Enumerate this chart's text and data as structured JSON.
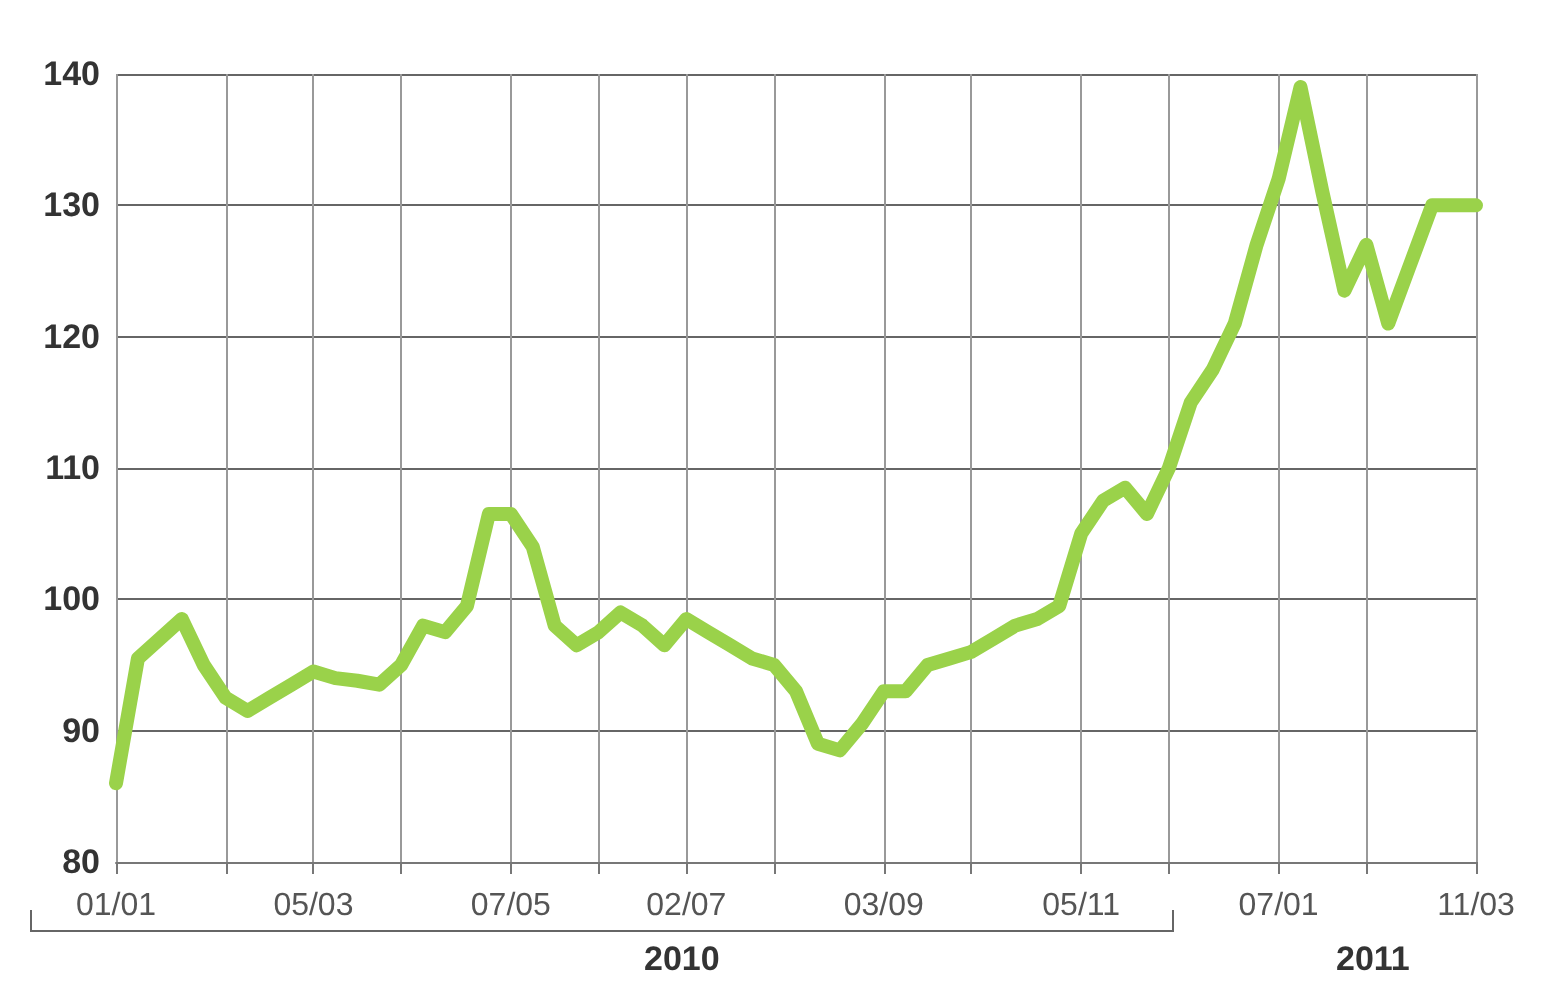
{
  "chart_data": {
    "type": "line",
    "x": [
      "2010-01-01",
      "2010-01-08",
      "2010-01-15",
      "2010-01-22",
      "2010-01-29",
      "2010-02-05",
      "2010-02-12",
      "2010-02-19",
      "2010-02-26",
      "2010-03-05",
      "2010-03-12",
      "2010-03-19",
      "2010-03-26",
      "2010-04-02",
      "2010-04-09",
      "2010-04-16",
      "2010-04-23",
      "2010-04-30",
      "2010-05-07",
      "2010-05-14",
      "2010-05-21",
      "2010-05-28",
      "2010-06-04",
      "2010-06-11",
      "2010-06-18",
      "2010-06-25",
      "2010-07-02",
      "2010-07-09",
      "2010-07-16",
      "2010-07-23",
      "2010-07-30",
      "2010-08-06",
      "2010-08-13",
      "2010-08-20",
      "2010-08-27",
      "2010-09-03",
      "2010-09-10",
      "2010-09-17",
      "2010-09-24",
      "2010-10-01",
      "2010-10-08",
      "2010-10-15",
      "2010-10-22",
      "2010-10-29",
      "2010-11-05",
      "2010-11-12",
      "2010-11-19",
      "2010-11-26",
      "2010-12-03",
      "2010-12-10",
      "2010-12-17",
      "2010-12-24",
      "2010-12-31",
      "2011-01-07",
      "2011-01-14",
      "2011-01-21",
      "2011-01-28",
      "2011-02-04",
      "2011-02-11",
      "2011-02-18",
      "2011-02-25",
      "2011-03-04",
      "2011-03-11"
    ],
    "series": [
      {
        "color": "#9ad24a",
        "values": [
          86,
          95.5,
          97,
          98.5,
          95,
          92.5,
          91.5,
          92.5,
          93.5,
          94.5,
          94,
          93.8,
          93.5,
          95,
          98,
          97.5,
          99.5,
          106.5,
          106.5,
          104,
          98,
          96.5,
          97.5,
          99,
          98,
          96.5,
          98.5,
          97.5,
          96.5,
          95.5,
          95,
          93,
          89,
          88.5,
          90.5,
          93,
          93,
          95,
          95.5,
          96,
          97,
          98,
          98.5,
          99.5,
          105,
          107.5,
          108.5,
          106.5,
          110,
          115,
          117.5,
          121,
          127,
          132,
          139,
          131,
          123.5,
          127,
          121,
          125.5,
          130,
          130,
          130
        ]
      }
    ],
    "xlim": [
      "2010-01-01",
      "2011-03-11"
    ],
    "xticks": [
      {
        "value": "2010-01-01",
        "label": "01/01"
      },
      {
        "value": "2010-02-05",
        "label": null
      },
      {
        "value": "2010-03-05",
        "label": "05/03"
      },
      {
        "value": "2010-04-02",
        "label": null
      },
      {
        "value": "2010-05-07",
        "label": "07/05"
      },
      {
        "value": "2010-06-04",
        "label": null
      },
      {
        "value": "2010-07-02",
        "label": "02/07"
      },
      {
        "value": "2010-07-30",
        "label": null
      },
      {
        "value": "2010-09-03",
        "label": "03/09"
      },
      {
        "value": "2010-10-01",
        "label": null
      },
      {
        "value": "2010-11-05",
        "label": "05/11"
      },
      {
        "value": "2010-12-03",
        "label": null
      },
      {
        "value": "2011-01-07",
        "label": "07/01"
      },
      {
        "value": "2011-02-04",
        "label": null
      },
      {
        "value": "2011-03-11",
        "label": "11/03"
      }
    ],
    "ylim": [
      80,
      140
    ],
    "yticks": [
      80,
      90,
      100,
      110,
      120,
      130,
      140
    ],
    "grid": true,
    "marker": "none",
    "line_style": "solid",
    "annotations": [
      "2010",
      "2011"
    ]
  }
}
